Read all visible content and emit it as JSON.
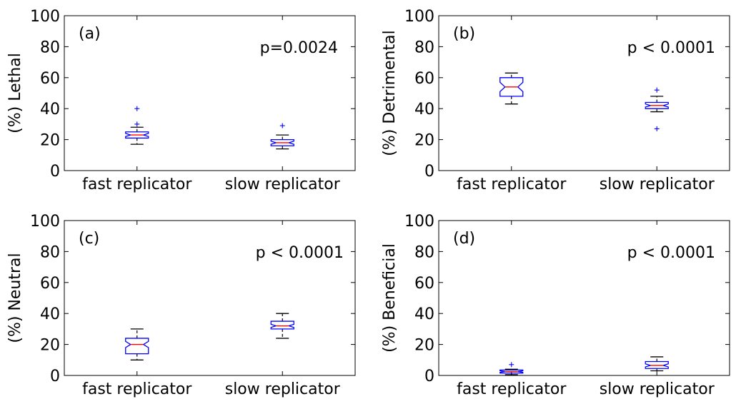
{
  "colors": {
    "box": "#0000ff",
    "median": "#ff0000",
    "whisker": "#000000",
    "flier": "#0000ff"
  },
  "chart_data": [
    {
      "type": "box",
      "panel": "(a)",
      "ylabel": "(%) Lethal",
      "pvalue": "p=0.0024",
      "ylim": [
        0,
        100
      ],
      "yticks": [
        "0",
        "20",
        "40",
        "60",
        "80",
        "100"
      ],
      "categories": [
        "fast replicator",
        "slow replicator"
      ],
      "boxes": [
        {
          "min": 17,
          "q1": 21,
          "notch_lo": 22,
          "median": 23,
          "notch_hi": 24,
          "q3": 25,
          "max": 28,
          "fliers": [
            30,
            40
          ]
        },
        {
          "min": 14,
          "q1": 16,
          "notch_lo": 17,
          "median": 18,
          "notch_hi": 19,
          "q3": 20,
          "max": 23,
          "fliers": [
            29
          ]
        }
      ]
    },
    {
      "type": "box",
      "panel": "(b)",
      "ylabel": "(%) Detrimental",
      "pvalue": "p < 0.0001",
      "ylim": [
        0,
        100
      ],
      "yticks": [
        "0",
        "20",
        "40",
        "60",
        "80",
        "100"
      ],
      "categories": [
        "fast replicator",
        "slow replicator"
      ],
      "boxes": [
        {
          "min": 43,
          "q1": 48,
          "notch_lo": 51,
          "median": 54,
          "notch_hi": 57,
          "q3": 60,
          "max": 63,
          "fliers": []
        },
        {
          "min": 38,
          "q1": 40,
          "notch_lo": 41,
          "median": 42,
          "notch_hi": 43,
          "q3": 44,
          "max": 48,
          "fliers": [
            52,
            27
          ]
        }
      ]
    },
    {
      "type": "box",
      "panel": "(c)",
      "ylabel": "(%) Neutral",
      "pvalue": "p < 0.0001",
      "ylim": [
        0,
        100
      ],
      "yticks": [
        "0",
        "20",
        "40",
        "60",
        "80",
        "100"
      ],
      "categories": [
        "fast replicator",
        "slow replicator"
      ],
      "boxes": [
        {
          "min": 10,
          "q1": 14,
          "notch_lo": 18,
          "median": 20,
          "notch_hi": 22,
          "q3": 24,
          "max": 30,
          "fliers": []
        },
        {
          "min": 24,
          "q1": 30,
          "notch_lo": 31,
          "median": 32,
          "notch_hi": 33,
          "q3": 35,
          "max": 40,
          "fliers": []
        }
      ]
    },
    {
      "type": "box",
      "panel": "(d)",
      "ylabel": "(%) Beneficial",
      "pvalue": "p < 0.0001",
      "ylim": [
        0,
        100
      ],
      "yticks": [
        "0",
        "20",
        "40",
        "60",
        "80",
        "100"
      ],
      "categories": [
        "fast replicator",
        "slow replicator"
      ],
      "boxes": [
        {
          "min": 0.5,
          "q1": 1.5,
          "notch_lo": 2,
          "median": 2.5,
          "notch_hi": 3,
          "q3": 3.5,
          "max": 4,
          "fliers": [
            7
          ]
        },
        {
          "min": 3,
          "q1": 4.5,
          "notch_lo": 5.5,
          "median": 6.5,
          "notch_hi": 7.5,
          "q3": 9,
          "max": 12,
          "fliers": []
        }
      ]
    }
  ]
}
